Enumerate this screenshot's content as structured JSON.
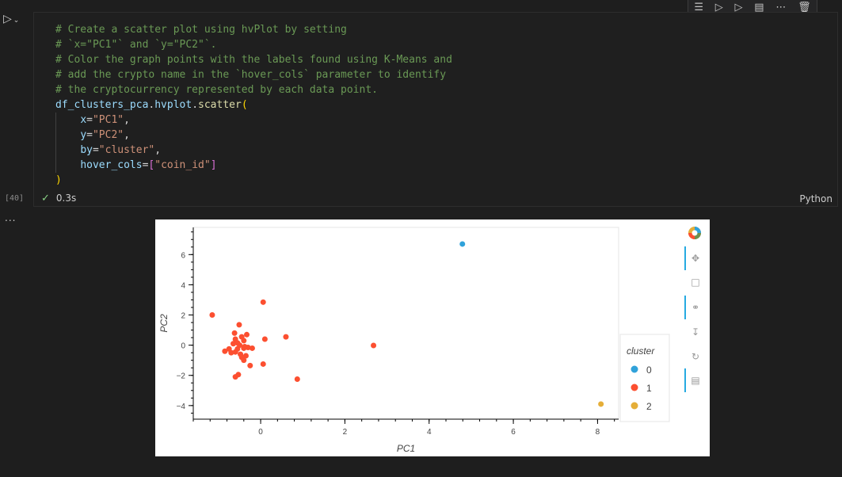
{
  "cell": {
    "toolbar_icons": [
      "run-by-line-icon",
      "execute-above-icon",
      "execute-below-icon",
      "split-cell-icon",
      "more-icon",
      "delete-icon"
    ],
    "execution_count": "[40]",
    "status_check": "✓",
    "duration": "0.3s",
    "language": "Python",
    "output_more": "..."
  },
  "code": {
    "comments": [
      "# Create a scatter plot using hvPlot by setting",
      "# `x=\"PC1\"` and `y=\"PC2\"`.",
      "# Color the graph points with the labels found using K-Means and",
      "# add the crypto name in the `hover_cols` parameter to identify",
      "# the cryptocurrency represented by each data point."
    ],
    "call_obj": "df_clusters_pca",
    "call_dot1": ".",
    "call_mod": "hvplot",
    "call_dot2": ".",
    "call_fn": "scatter",
    "open_paren": "(",
    "close_paren": ")",
    "args": [
      {
        "name": "x",
        "eq": "=",
        "value": "\"PC1\"",
        "comma": ","
      },
      {
        "name": "y",
        "eq": "=",
        "value": "\"PC2\"",
        "comma": ","
      },
      {
        "name": "by",
        "eq": "=",
        "value": "\"cluster\"",
        "comma": ","
      },
      {
        "name": "hover_cols",
        "eq": "=",
        "lbr": "[",
        "value": "\"coin_id\"",
        "rbr": "]",
        "comma": ""
      }
    ]
  },
  "chart_data": {
    "type": "scatter",
    "xlabel": "PC1",
    "ylabel": "PC2",
    "xlim": [
      -1.6,
      8.5
    ],
    "ylim": [
      -4.9,
      7.8
    ],
    "xticks": [
      0,
      2,
      4,
      6,
      8
    ],
    "yticks": [
      -4,
      -2,
      0,
      2,
      4,
      6
    ],
    "legend_title": "cluster",
    "legend_position": "right",
    "grid": false,
    "series": [
      {
        "name": "0",
        "color": "#30a2da",
        "points": [
          [
            4.79,
            6.7
          ]
        ]
      },
      {
        "name": "1",
        "color": "#fc4f30",
        "points": [
          [
            -1.15,
            2.0
          ],
          [
            0.06,
            2.85
          ],
          [
            -0.51,
            1.35
          ],
          [
            -0.62,
            0.8
          ],
          [
            -0.33,
            0.7
          ],
          [
            -0.45,
            0.55
          ],
          [
            -0.6,
            0.4
          ],
          [
            -0.4,
            0.3
          ],
          [
            0.1,
            0.4
          ],
          [
            0.6,
            0.55
          ],
          [
            -0.65,
            0.1
          ],
          [
            -0.5,
            0.0
          ],
          [
            -0.3,
            -0.15
          ],
          [
            -0.4,
            -0.2
          ],
          [
            -0.55,
            -0.25
          ],
          [
            -0.75,
            -0.25
          ],
          [
            -0.85,
            -0.4
          ],
          [
            -0.7,
            -0.5
          ],
          [
            -0.6,
            -0.45
          ],
          [
            -0.48,
            -0.6
          ],
          [
            -0.35,
            -0.7
          ],
          [
            -0.45,
            -0.8
          ],
          [
            -0.4,
            -1.0
          ],
          [
            -0.25,
            -1.35
          ],
          [
            0.06,
            -1.25
          ],
          [
            -0.6,
            -2.1
          ],
          [
            -0.53,
            -1.95
          ],
          [
            0.87,
            -2.25
          ],
          [
            2.68,
            -0.02
          ],
          [
            -0.38,
            -0.1
          ],
          [
            -0.55,
            0.15
          ],
          [
            -0.2,
            -0.2
          ]
        ]
      },
      {
        "name": "2",
        "color": "#e5ae38",
        "points": [
          [
            8.08,
            -3.9
          ]
        ]
      }
    ]
  }
}
